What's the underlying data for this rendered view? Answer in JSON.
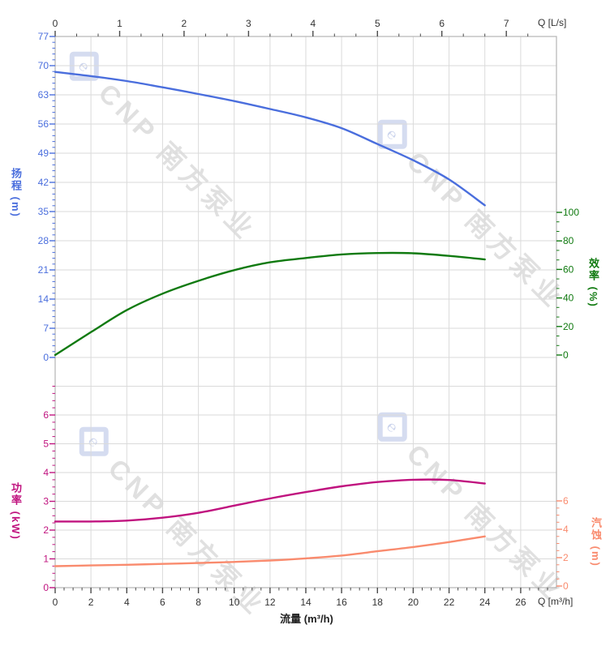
{
  "chart_data": {
    "type": "line",
    "title": "",
    "xlabel": "流量 (m³/h)",
    "watermark": {
      "logo_glyph": "℮",
      "text": "CNP 南方泵业"
    },
    "x_axis_top": {
      "label": "Q [L/s]",
      "ticks": [
        0,
        1,
        2,
        3,
        4,
        5,
        6,
        7
      ],
      "range": [
        0,
        7.78
      ],
      "units_per_m3h": 3.6
    },
    "x_axis_bottom": {
      "label": "Q [m³/h]",
      "ticks": [
        0,
        2,
        4,
        6,
        8,
        10,
        12,
        14,
        16,
        18,
        20,
        22,
        24,
        26
      ],
      "range": [
        0,
        28
      ]
    },
    "q": [
      0,
      2,
      4,
      6,
      8,
      10,
      12,
      14,
      16,
      18,
      20,
      22,
      24
    ],
    "series": [
      {
        "id": "head",
        "name": "扬程",
        "axis_title": "扬程 (m)",
        "unit": "m",
        "color": "#4a6edd",
        "axis_ticks": [
          77,
          70,
          63,
          56,
          49,
          42,
          35,
          28,
          21,
          14,
          7,
          0
        ],
        "axis_range": [
          0,
          77
        ],
        "values": [
          68.5,
          67.5,
          66.3,
          64.8,
          63.2,
          61.5,
          59.6,
          57.6,
          55.0,
          51.2,
          47.3,
          42.7,
          36.5
        ]
      },
      {
        "id": "efficiency",
        "name": "效率",
        "axis_title": "效率 (%)",
        "unit": "%",
        "color": "#107a10",
        "axis_ticks": [
          100,
          80,
          60,
          40,
          20,
          0
        ],
        "axis_range": [
          0,
          100
        ],
        "values": [
          0,
          16,
          31.5,
          43,
          52,
          59.5,
          65,
          68,
          70.5,
          71.5,
          71.3,
          69.5,
          67
        ]
      },
      {
        "id": "power",
        "name": "功率",
        "axis_title": "功率 (kW)",
        "unit": "kW",
        "color": "#c0137f",
        "axis_ticks": [
          6,
          5,
          4,
          3,
          2,
          1,
          0
        ],
        "axis_range": [
          0,
          6
        ],
        "values": [
          2.3,
          2.3,
          2.33,
          2.43,
          2.6,
          2.85,
          3.1,
          3.32,
          3.52,
          3.67,
          3.75,
          3.74,
          3.62
        ]
      },
      {
        "id": "npsh",
        "name": "汽蚀",
        "axis_title": "汽蚀 (m)",
        "unit": "m",
        "color": "#f98b6e",
        "axis_ticks": [
          6,
          4,
          2,
          0
        ],
        "axis_range": [
          0,
          6
        ],
        "values": [
          1.4,
          1.45,
          1.5,
          1.56,
          1.62,
          1.7,
          1.8,
          1.95,
          2.15,
          2.45,
          2.75,
          3.1,
          3.5
        ]
      }
    ]
  }
}
